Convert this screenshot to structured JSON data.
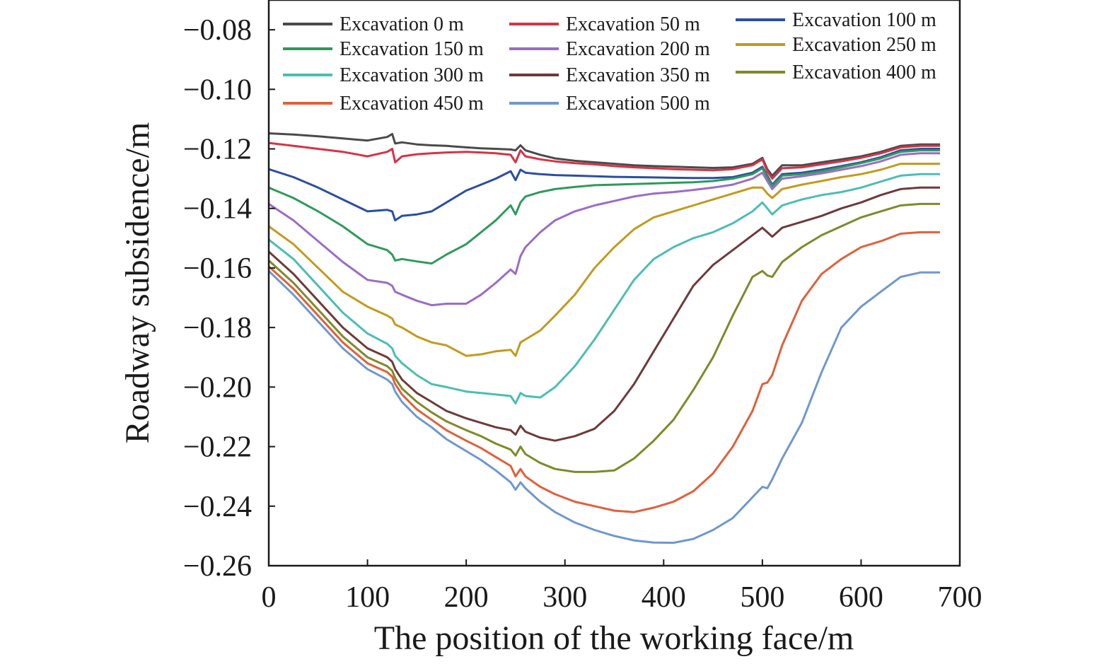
{
  "chart_data": {
    "type": "line",
    "title": "",
    "xlabel": "The position of the working face/m",
    "ylabel": "Roadway subsidence/m",
    "xlim": [
      0,
      700
    ],
    "ylim": [
      -0.26,
      -0.07
    ],
    "xticks": [
      0,
      100,
      200,
      300,
      400,
      500,
      600,
      700
    ],
    "yticks": [
      -0.26,
      -0.24,
      -0.22,
      -0.2,
      -0.18,
      -0.16,
      -0.14,
      -0.12,
      -0.1,
      -0.08
    ],
    "xtick_labels": [
      "0",
      "100",
      "200",
      "300",
      "400",
      "500",
      "600",
      "700"
    ],
    "ytick_labels": [
      "−0.26",
      "−0.24",
      "−0.22",
      "−0.20",
      "−0.18",
      "−0.16",
      "−0.14",
      "−0.12",
      "−0.10",
      "−0.08"
    ],
    "grid": false,
    "legend_position": "top",
    "x": [
      0,
      25,
      50,
      75,
      100,
      120,
      125,
      128,
      135,
      150,
      165,
      180,
      200,
      215,
      230,
      245,
      250,
      255,
      260,
      275,
      290,
      310,
      330,
      350,
      370,
      390,
      410,
      430,
      450,
      470,
      490,
      500,
      505,
      510,
      520,
      540,
      560,
      580,
      600,
      620,
      640,
      660,
      680
    ],
    "series": [
      {
        "name": "Excavation 0 m",
        "color": "#4a4a4a",
        "values": [
          -0.1148,
          -0.1152,
          -0.1158,
          -0.1165,
          -0.1172,
          -0.116,
          -0.115,
          -0.1182,
          -0.1178,
          -0.1185,
          -0.1188,
          -0.119,
          -0.1195,
          -0.1198,
          -0.12,
          -0.1202,
          -0.1205,
          -0.1188,
          -0.1205,
          -0.122,
          -0.1232,
          -0.124,
          -0.1245,
          -0.125,
          -0.1255,
          -0.1258,
          -0.126,
          -0.1262,
          -0.1264,
          -0.1262,
          -0.125,
          -0.123,
          -0.1268,
          -0.129,
          -0.1255,
          -0.1255,
          -0.1245,
          -0.1235,
          -0.1225,
          -0.121,
          -0.119,
          -0.1185,
          -0.1185
        ]
      },
      {
        "name": "Excavation 50 m",
        "color": "#d63347",
        "values": [
          -0.118,
          -0.119,
          -0.12,
          -0.121,
          -0.1225,
          -0.121,
          -0.12,
          -0.1245,
          -0.1225,
          -0.1218,
          -0.1215,
          -0.1212,
          -0.121,
          -0.1212,
          -0.1215,
          -0.122,
          -0.1245,
          -0.1205,
          -0.1225,
          -0.1235,
          -0.1242,
          -0.1248,
          -0.1252,
          -0.1258,
          -0.1262,
          -0.1265,
          -0.1268,
          -0.127,
          -0.1272,
          -0.1268,
          -0.1255,
          -0.1235,
          -0.1275,
          -0.13,
          -0.1265,
          -0.1262,
          -0.1252,
          -0.1242,
          -0.123,
          -0.1215,
          -0.1195,
          -0.119,
          -0.119
        ]
      },
      {
        "name": "Excavation 100 m",
        "color": "#2b4fa0",
        "values": [
          -0.1268,
          -0.1295,
          -0.133,
          -0.137,
          -0.141,
          -0.1405,
          -0.141,
          -0.144,
          -0.1425,
          -0.142,
          -0.141,
          -0.138,
          -0.134,
          -0.132,
          -0.13,
          -0.1275,
          -0.1305,
          -0.127,
          -0.128,
          -0.1285,
          -0.1288,
          -0.129,
          -0.1292,
          -0.1294,
          -0.1295,
          -0.1296,
          -0.1297,
          -0.1298,
          -0.1298,
          -0.1295,
          -0.128,
          -0.126,
          -0.129,
          -0.132,
          -0.1285,
          -0.128,
          -0.127,
          -0.1258,
          -0.1245,
          -0.1228,
          -0.1205,
          -0.12,
          -0.12
        ]
      },
      {
        "name": "Excavation 150 m",
        "color": "#2f9a5a",
        "values": [
          -0.133,
          -0.1365,
          -0.141,
          -0.146,
          -0.152,
          -0.154,
          -0.1555,
          -0.1575,
          -0.157,
          -0.1578,
          -0.1585,
          -0.1555,
          -0.152,
          -0.148,
          -0.144,
          -0.139,
          -0.142,
          -0.138,
          -0.136,
          -0.1345,
          -0.1335,
          -0.1328,
          -0.1322,
          -0.132,
          -0.1318,
          -0.1316,
          -0.1314,
          -0.1312,
          -0.1308,
          -0.13,
          -0.1285,
          -0.1265,
          -0.1295,
          -0.1325,
          -0.129,
          -0.1285,
          -0.1275,
          -0.1262,
          -0.1248,
          -0.1232,
          -0.121,
          -0.1205,
          -0.1205
        ]
      },
      {
        "name": "Excavation 200 m",
        "color": "#9b6cc5",
        "values": [
          -0.1385,
          -0.144,
          -0.151,
          -0.158,
          -0.164,
          -0.165,
          -0.166,
          -0.168,
          -0.169,
          -0.171,
          -0.1725,
          -0.172,
          -0.172,
          -0.169,
          -0.165,
          -0.1605,
          -0.162,
          -0.156,
          -0.153,
          -0.148,
          -0.144,
          -0.141,
          -0.139,
          -0.1375,
          -0.136,
          -0.135,
          -0.1345,
          -0.1338,
          -0.133,
          -0.132,
          -0.13,
          -0.128,
          -0.1308,
          -0.1335,
          -0.13,
          -0.1292,
          -0.1282,
          -0.127,
          -0.1258,
          -0.1242,
          -0.122,
          -0.1215,
          -0.1215
        ]
      },
      {
        "name": "Excavation 250 m",
        "color": "#c29a1e",
        "values": [
          -0.146,
          -0.152,
          -0.16,
          -0.168,
          -0.173,
          -0.176,
          -0.177,
          -0.179,
          -0.18,
          -0.183,
          -0.185,
          -0.186,
          -0.1895,
          -0.189,
          -0.188,
          -0.1875,
          -0.1895,
          -0.185,
          -0.184,
          -0.181,
          -0.176,
          -0.169,
          -0.16,
          -0.153,
          -0.147,
          -0.143,
          -0.141,
          -0.139,
          -0.137,
          -0.135,
          -0.133,
          -0.133,
          -0.135,
          -0.1365,
          -0.1335,
          -0.132,
          -0.1308,
          -0.1295,
          -0.1285,
          -0.127,
          -0.125,
          -0.125,
          -0.125
        ]
      },
      {
        "name": "Excavation 300 m",
        "color": "#4cbdb4",
        "values": [
          -0.1505,
          -0.157,
          -0.166,
          -0.175,
          -0.182,
          -0.1855,
          -0.187,
          -0.1895,
          -0.192,
          -0.196,
          -0.199,
          -0.2,
          -0.2015,
          -0.202,
          -0.2025,
          -0.203,
          -0.2055,
          -0.202,
          -0.203,
          -0.2035,
          -0.2,
          -0.193,
          -0.184,
          -0.174,
          -0.164,
          -0.157,
          -0.153,
          -0.15,
          -0.148,
          -0.145,
          -0.141,
          -0.138,
          -0.14,
          -0.142,
          -0.139,
          -0.137,
          -0.1355,
          -0.1345,
          -0.133,
          -0.131,
          -0.129,
          -0.1285,
          -0.1285
        ]
      },
      {
        "name": "Excavation 350 m",
        "color": "#6e3a3a",
        "values": [
          -0.1545,
          -0.162,
          -0.171,
          -0.18,
          -0.187,
          -0.19,
          -0.1915,
          -0.194,
          -0.1975,
          -0.202,
          -0.205,
          -0.208,
          -0.2105,
          -0.212,
          -0.2135,
          -0.2145,
          -0.216,
          -0.213,
          -0.215,
          -0.217,
          -0.218,
          -0.2165,
          -0.214,
          -0.208,
          -0.199,
          -0.188,
          -0.177,
          -0.166,
          -0.159,
          -0.154,
          -0.149,
          -0.1465,
          -0.148,
          -0.1495,
          -0.1465,
          -0.1445,
          -0.1425,
          -0.14,
          -0.138,
          -0.1355,
          -0.1335,
          -0.133,
          -0.133
        ]
      },
      {
        "name": "Excavation 400 m",
        "color": "#7e8a2a",
        "values": [
          -0.1575,
          -0.165,
          -0.174,
          -0.183,
          -0.19,
          -0.193,
          -0.1945,
          -0.197,
          -0.2005,
          -0.205,
          -0.2085,
          -0.2115,
          -0.2145,
          -0.2165,
          -0.219,
          -0.221,
          -0.223,
          -0.22,
          -0.2225,
          -0.2255,
          -0.2275,
          -0.2285,
          -0.2285,
          -0.228,
          -0.224,
          -0.218,
          -0.211,
          -0.201,
          -0.19,
          -0.176,
          -0.163,
          -0.161,
          -0.1625,
          -0.163,
          -0.158,
          -0.153,
          -0.149,
          -0.146,
          -0.143,
          -0.141,
          -0.139,
          -0.1385,
          -0.1385
        ]
      },
      {
        "name": "Excavation 450 m",
        "color": "#e0603a",
        "values": [
          -0.1595,
          -0.167,
          -0.176,
          -0.185,
          -0.192,
          -0.195,
          -0.1965,
          -0.199,
          -0.2025,
          -0.2075,
          -0.211,
          -0.2145,
          -0.218,
          -0.2205,
          -0.2235,
          -0.2265,
          -0.23,
          -0.2275,
          -0.23,
          -0.2335,
          -0.236,
          -0.2385,
          -0.24,
          -0.2415,
          -0.242,
          -0.2405,
          -0.2385,
          -0.235,
          -0.229,
          -0.22,
          -0.208,
          -0.199,
          -0.1985,
          -0.196,
          -0.186,
          -0.171,
          -0.162,
          -0.157,
          -0.153,
          -0.151,
          -0.1485,
          -0.148,
          -0.148
        ]
      },
      {
        "name": "Excavation 500 m",
        "color": "#6f98cc",
        "values": [
          -0.161,
          -0.169,
          -0.178,
          -0.187,
          -0.194,
          -0.1975,
          -0.199,
          -0.2015,
          -0.205,
          -0.21,
          -0.2135,
          -0.2175,
          -0.2215,
          -0.2245,
          -0.228,
          -0.232,
          -0.2345,
          -0.232,
          -0.234,
          -0.2385,
          -0.242,
          -0.2455,
          -0.248,
          -0.25,
          -0.2515,
          -0.2522,
          -0.2523,
          -0.251,
          -0.248,
          -0.244,
          -0.237,
          -0.2335,
          -0.234,
          -0.231,
          -0.224,
          -0.212,
          -0.195,
          -0.18,
          -0.173,
          -0.168,
          -0.163,
          -0.1615,
          -0.1615
        ]
      }
    ]
  }
}
